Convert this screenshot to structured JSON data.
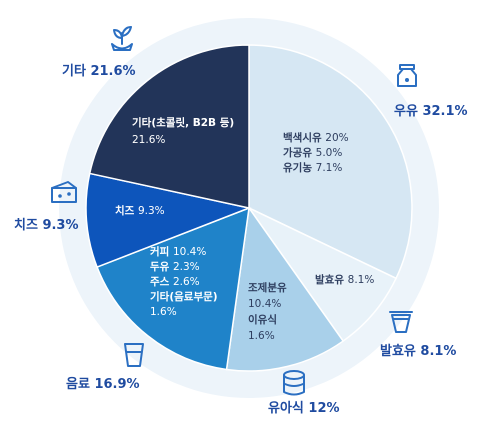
{
  "chart_data": {
    "type": "pie",
    "title": "",
    "slices": [
      {
        "key": "milk",
        "label": "우유 32.1%",
        "value": 32.1,
        "color": "#d6e7f3",
        "inner": [
          [
            "백색시유 ",
            "20%"
          ],
          [
            "가공유 ",
            "5.0%"
          ],
          [
            "유기농 ",
            "7.1%"
          ]
        ],
        "inner_color": "#2f3f60"
      },
      {
        "key": "fermented",
        "label": "발효유 8.1%",
        "value": 8.1,
        "color": "#e8f2f9",
        "inner": [
          [
            "발효유 ",
            "8.1%"
          ]
        ],
        "inner_color": "#2f3f60"
      },
      {
        "key": "formula",
        "label": "유아식 12%",
        "value": 12.0,
        "color": "#a9d0ea",
        "inner": [
          [
            "조제분유",
            ""
          ],
          [
            "",
            "10.4%"
          ],
          [
            "이유식",
            ""
          ],
          [
            "",
            "1.6%"
          ]
        ],
        "inner_color": "#2f3f60"
      },
      {
        "key": "beverage",
        "label": "음료 16.9%",
        "value": 16.9,
        "color": "#1f83c9",
        "inner": [
          [
            "커피 ",
            "10.4%"
          ],
          [
            "두유 ",
            "2.3%"
          ],
          [
            "주스 ",
            "2.6%"
          ],
          [
            "기타(음료부문)",
            ""
          ],
          [
            "",
            "1.6%"
          ]
        ],
        "inner_color": "#ffffff"
      },
      {
        "key": "cheese",
        "label": "치즈 9.3%",
        "value": 9.3,
        "color": "#0d55bb",
        "inner": [
          [
            "치즈 ",
            "9.3%"
          ]
        ],
        "inner_color": "#ffffff"
      },
      {
        "key": "other",
        "label": "기타 21.6%",
        "value": 21.6,
        "color": "#223459",
        "inner": [
          [
            "기타(초콜릿, B2B 등)",
            ""
          ],
          [
            "",
            "21.6%"
          ]
        ],
        "inner_color": "#ffffff"
      }
    ]
  },
  "icons": [
    "milk-carton-icon",
    "cup-icon",
    "can-icon",
    "glass-icon",
    "cheese-icon",
    "sprout-icon"
  ]
}
